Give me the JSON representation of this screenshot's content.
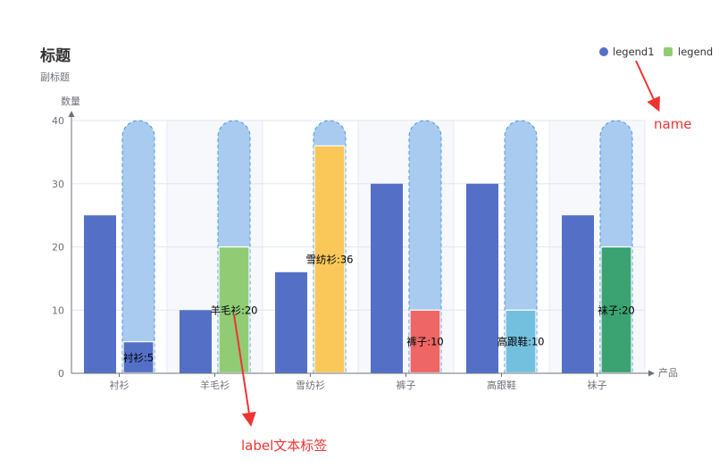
{
  "chart_data": {
    "type": "bar",
    "title": "标题",
    "subtitle": "副标题",
    "xlabel": "产品",
    "ylabel": "数量",
    "ylim": [
      0,
      40
    ],
    "yticks": [
      0,
      10,
      20,
      30,
      40
    ],
    "categories": [
      "衬衫",
      "羊毛衫",
      "雪纺衫",
      "裤子",
      "高跟鞋",
      "袜子"
    ],
    "series": [
      {
        "name": "legend1",
        "values": [
          25,
          10,
          16,
          30,
          30,
          25
        ],
        "color": "#5470c6"
      },
      {
        "name": "legend",
        "values": [
          5,
          20,
          36,
          10,
          10,
          20
        ],
        "labels": [
          "衬衫:5",
          "羊毛衫:20",
          "雪纺衫:36",
          "裤子:10",
          "高跟鞋:10",
          "袜子:20"
        ],
        "colors": [
          "#5470c6",
          "#91cc75",
          "#fac858",
          "#ee6666",
          "#73c0de",
          "#3ba272"
        ]
      }
    ],
    "background_bar": {
      "value": 40,
      "color": "#a9cbf0",
      "border_color": "#4b97e6"
    },
    "legend_position": "top-right",
    "grid": true
  },
  "annotations": {
    "name": "name",
    "label": "label文本标签",
    "color": "#ee3333"
  }
}
